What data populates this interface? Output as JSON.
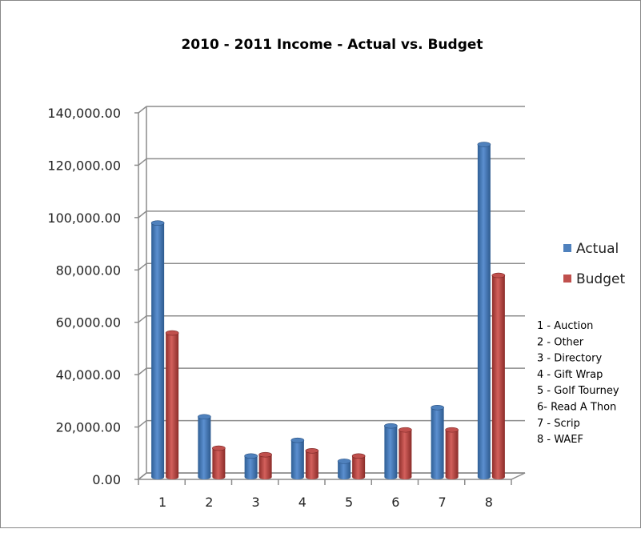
{
  "chart_data": {
    "type": "bar",
    "title": "2010 - 2011 Income - Actual vs. Budget",
    "xlabel": "",
    "ylabel": "",
    "ylim": [
      0,
      140000
    ],
    "yticks": [
      "0.00",
      "20,000.00",
      "40,000.00",
      "60,000.00",
      "80,000.00",
      "100,000.00",
      "120,000.00",
      "140,000.00"
    ],
    "categories": [
      "1",
      "2",
      "3",
      "4",
      "5",
      "6",
      "7",
      "8"
    ],
    "series": [
      {
        "name": "Actual",
        "color": "#4f81bd",
        "values": [
          97000,
          23000,
          8000,
          14000,
          6000,
          19500,
          26500,
          127000
        ]
      },
      {
        "name": "Budget",
        "color": "#c0504d",
        "values": [
          55000,
          11000,
          8500,
          10000,
          8000,
          18000,
          18000,
          77000
        ]
      }
    ],
    "grid": true,
    "legend_position": "right",
    "category_key": [
      "1 - Auction",
      "2 - Other",
      "3 - Directory",
      "4 - Gift Wrap",
      "5 - Golf Tourney",
      "6- Read A Thon",
      "7 - Scrip",
      "8 - WAEF"
    ]
  }
}
